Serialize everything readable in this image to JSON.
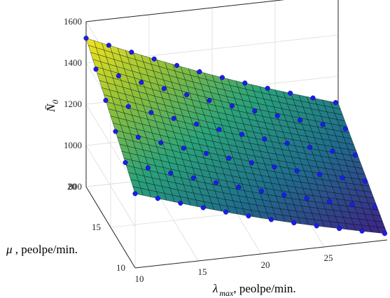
{
  "chart_data": {
    "type": "surface",
    "title": "",
    "xlabel": "λ max , peolpe/min.",
    "ylabel": "μ , peolpe/min.",
    "zlabel": "N̄0",
    "x_label_parts": {
      "symbol": "λ",
      "subscript": "max",
      "unit": ", peolpe/min."
    },
    "y_label_parts": {
      "symbol": "μ",
      "unit": " , peolpe/min."
    },
    "z_label_parts": {
      "symbol": "N̄",
      "subscript": "0"
    },
    "xlim": [
      10,
      30
    ],
    "ylim": [
      10,
      20
    ],
    "zlim": [
      800,
      1600
    ],
    "x_ticks": [
      "10",
      "15",
      "20",
      "25"
    ],
    "y_ticks": [
      "10",
      "15",
      "20"
    ],
    "z_ticks": [
      "800",
      "1000",
      "1200",
      "1400",
      "1600"
    ],
    "grid": true,
    "colormap": [
      "#3b2a86",
      "#1f6e8c",
      "#2aa37a",
      "#8fc03b",
      "#f5e61e"
    ],
    "marker_color": "#1c1cf0",
    "edge_color": "#000000",
    "z_surface_corners": {
      "x10_y10": 1160,
      "x10_y20": 1520,
      "x30_y10": 830,
      "x30_y20": 1070
    },
    "sample_points": [
      {
        "x": 10,
        "y": 20,
        "z": 1520
      },
      {
        "x": 10,
        "y": 16,
        "z": 1400
      },
      {
        "x": 10,
        "y": 10,
        "z": 1160
      },
      {
        "x": 20,
        "y": 20,
        "z": 1330
      },
      {
        "x": 20,
        "y": 15,
        "z": 1150
      },
      {
        "x": 20,
        "y": 10,
        "z": 980
      },
      {
        "x": 30,
        "y": 20,
        "z": 1070
      },
      {
        "x": 30,
        "y": 15,
        "z": 950
      },
      {
        "x": 30,
        "y": 10,
        "z": 830
      }
    ]
  }
}
